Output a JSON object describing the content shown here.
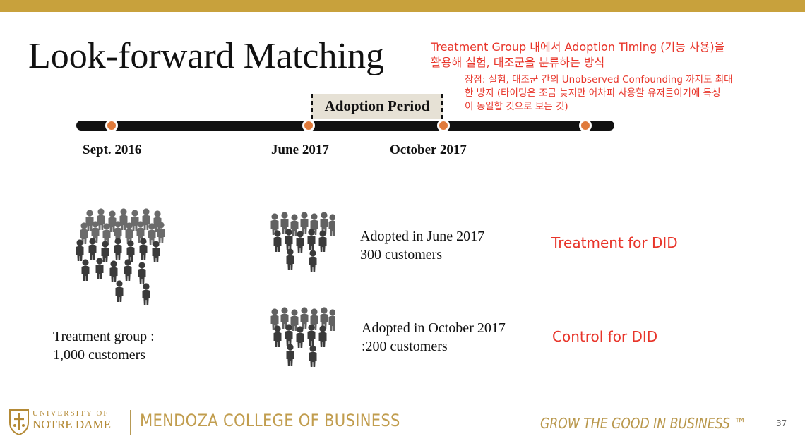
{
  "slide": {
    "title": "Look-forward Matching",
    "page_number": "37"
  },
  "annotation": {
    "line1": "Treatment Group 내에서 Adoption Timing (기능 사용)을",
    "line2": "활용해 실험, 대조군을 분류하는 방식",
    "sub1": "장점: 실험, 대조군 간의 Unobserved Confounding 까지도 최대",
    "sub2": "한 방지 (타이밍은 조금 늦지만 어차피 사용할 유저들이기에 특성",
    "sub3": "이 동일할 것으로 보는 것)"
  },
  "timeline": {
    "period_label": "Adoption Period",
    "dates": [
      "Sept. 2016",
      "June 2017",
      "October 2017"
    ]
  },
  "groups": {
    "treatment_group_line1": "Treatment group :",
    "treatment_group_line2": "1,000 customers",
    "june_line1": "Adopted in June 2017",
    "june_line2": "300 customers",
    "october_line1": "Adopted in October 2017",
    "october_line2": ":200 customers",
    "treatment_label": "Treatment for DID",
    "control_label": "Control for DID"
  },
  "footer": {
    "university_top": "UNIVERSITY OF",
    "university_bottom": "NOTRE DAME",
    "college": "MENDOZA COLLEGE OF BUSINESS",
    "tagline": "GROW THE GOOD IN BUSINESS ™"
  },
  "colors": {
    "accent_gold": "#c8a13c",
    "annotation_red": "#e8352a",
    "timeline_dot": "#e07a3a"
  },
  "icons": [
    "crowd-large-icon",
    "crowd-june-icon",
    "crowd-october-icon",
    "notre-dame-shield-icon"
  ]
}
